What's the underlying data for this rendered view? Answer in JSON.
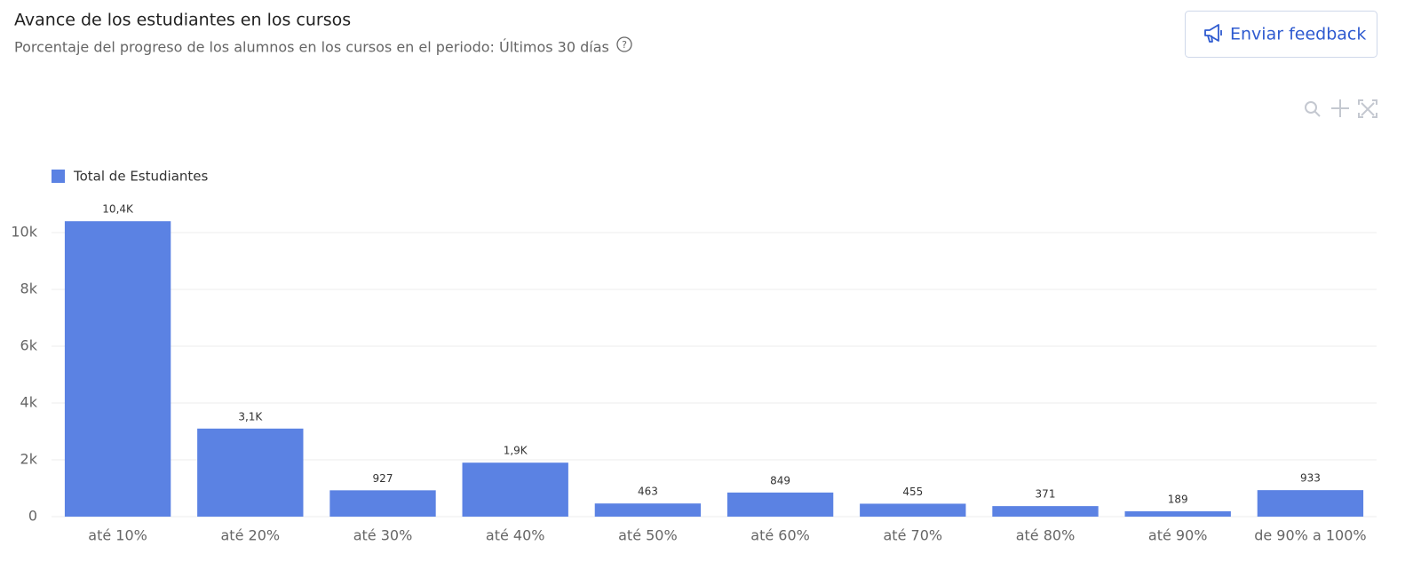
{
  "chart_data": {
    "type": "bar",
    "title": "Avance de los estudiantes en los cursos",
    "subtitle": "Porcentaje del progreso de los alumnos en los cursos en el periodo: Últimos 30 días",
    "categories": [
      "até 10%",
      "até 20%",
      "até 30%",
      "até 40%",
      "até 50%",
      "até 60%",
      "até 70%",
      "até 80%",
      "até 90%",
      "de 90% a 100%"
    ],
    "series": [
      {
        "name": "Total de Estudiantes",
        "color": "#5b82e3",
        "values": [
          10400,
          3100,
          927,
          1900,
          463,
          849,
          455,
          371,
          189,
          933
        ],
        "value_labels": [
          "10,4K",
          "3,1K",
          "927",
          "1,9K",
          "463",
          "849",
          "455",
          "371",
          "189",
          "933"
        ]
      }
    ],
    "ylim": [
      0,
      11000
    ],
    "yticks": [
      0,
      {
        "value": 2000,
        "label": "2k"
      },
      {
        "value": 4000,
        "label": "4k"
      },
      {
        "value": 6000,
        "label": "6k"
      },
      {
        "value": 8000,
        "label": "8k"
      },
      {
        "value": 10000,
        "label": "10k"
      }
    ],
    "grid": true,
    "legend": "top-left"
  },
  "button": {
    "label": "Enviar feedback"
  }
}
